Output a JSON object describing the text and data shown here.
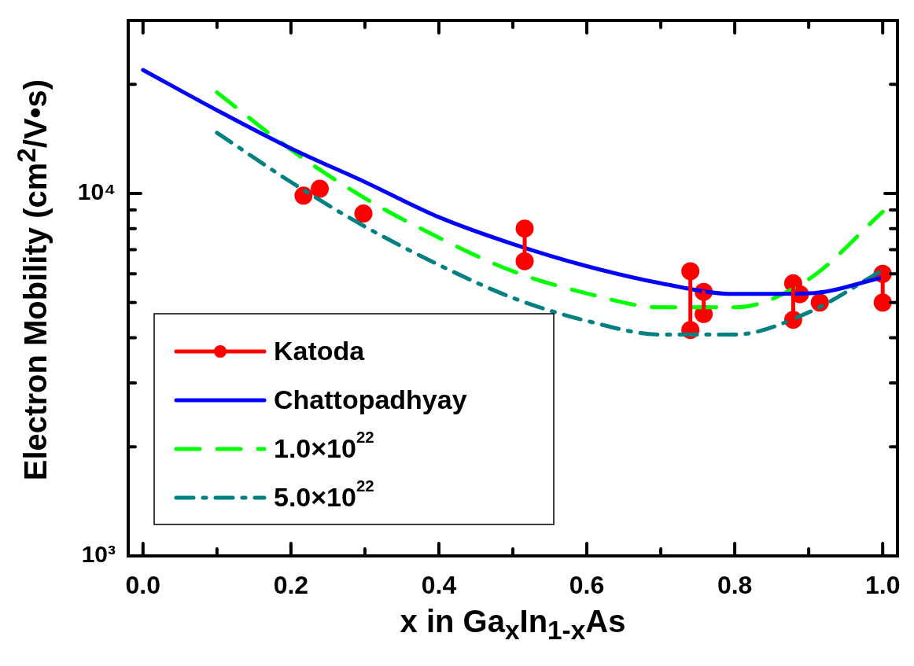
{
  "chart_data": {
    "type": "line",
    "xlabel": "x in Ga$_{x}$In$_{1-x}$As",
    "ylabel": "Electron Mobility (cm$^{2}$/V•s)",
    "log": "y",
    "xlim": [
      -0.02,
      1.02
    ],
    "ylim": [
      1000,
      30000
    ],
    "xticks": [
      {
        "value": 0,
        "label": "0.0"
      },
      {
        "value": 0.1,
        "label": null
      },
      {
        "value": 0.2,
        "label": "0.2"
      },
      {
        "value": 0.3,
        "label": null
      },
      {
        "value": 0.4,
        "label": "0.4"
      },
      {
        "value": 0.5,
        "label": null
      },
      {
        "value": 0.6,
        "label": "0.6"
      },
      {
        "value": 0.7,
        "label": null
      },
      {
        "value": 0.8,
        "label": "0.8"
      },
      {
        "value": 0.9,
        "label": null
      },
      {
        "value": 1,
        "label": "1.0"
      }
    ],
    "yticks": [
      {
        "value": 1000,
        "label": "10³"
      },
      {
        "value": 2000,
        "label": null
      },
      {
        "value": 3000,
        "label": null
      },
      {
        "value": 4000,
        "label": null
      },
      {
        "value": 5000,
        "label": null
      },
      {
        "value": 6000,
        "label": null
      },
      {
        "value": 7000,
        "label": null
      },
      {
        "value": 8000,
        "label": null
      },
      {
        "value": 9000,
        "label": null
      },
      {
        "value": 10000,
        "label": "10⁴"
      },
      {
        "value": 20000,
        "label": null
      }
    ],
    "grid": false,
    "legend": "bottom left",
    "series": [
      {
        "name": "Katoda",
        "type": "scatter",
        "color": "#ff0000",
        "marker": "circle",
        "line_style": "solid",
        "x": [
          0.217,
          0.239,
          0.298,
          0.516,
          0.516,
          0.74,
          0.74,
          0.758,
          0.758,
          0.879,
          0.879,
          0.888,
          0.915,
          1.0,
          1.0
        ],
        "values": [
          9860,
          10300,
          8800,
          8000,
          6500,
          6100,
          4200,
          5350,
          4650,
          5650,
          4480,
          5270,
          5000,
          6000,
          5000
        ]
      },
      {
        "type": "line",
        "color": "#ff0000",
        "marker": "none",
        "line_style": "solid",
        "x": [
          0.516,
          0.516
        ],
        "values": [
          8000,
          6500
        ]
      },
      {
        "type": "line",
        "color": "#ff0000",
        "marker": "none",
        "line_style": "solid",
        "x": [
          0.74,
          0.74
        ],
        "values": [
          6100,
          4200
        ]
      },
      {
        "type": "line",
        "color": "#ff0000",
        "marker": "none",
        "line_style": "solid",
        "x": [
          0.758,
          0.758
        ],
        "values": [
          5350,
          4650
        ]
      },
      {
        "type": "line",
        "color": "#ff0000",
        "marker": "none",
        "line_style": "solid",
        "x": [
          0.879,
          0.879
        ],
        "values": [
          5650,
          4480
        ]
      },
      {
        "type": "line",
        "color": "#ff0000",
        "marker": "none",
        "line_style": "solid",
        "x": [
          1.0,
          1.0
        ],
        "values": [
          6000,
          5000
        ]
      },
      {
        "name": "Chattopadhyay",
        "color": "#0000ff",
        "marker": "none",
        "line_style": "solid",
        "x": [
          0,
          0.1,
          0.2,
          0.3,
          0.4,
          0.5,
          0.6,
          0.7,
          0.8,
          0.9,
          1.0
        ],
        "values": [
          21900,
          16960,
          13310,
          10750,
          8600,
          7250,
          6300,
          5650,
          5280,
          5300,
          5860
        ]
      },
      {
        "name": "1.0×10$^{22}$",
        "color": "#00ff00",
        "marker": "none",
        "line_style": "dashed",
        "x": [
          0.1,
          0.2,
          0.3,
          0.4,
          0.5,
          0.6,
          0.7,
          0.8,
          0.9,
          1.0
        ],
        "values": [
          19000,
          13200,
          9700,
          7550,
          6100,
          5300,
          4850,
          4850,
          5800,
          8900
        ]
      },
      {
        "name": "5.0×10$^{22}$",
        "color": "#008080",
        "marker": "none",
        "line_style": "dashdot",
        "x": [
          0.1,
          0.2,
          0.3,
          0.4,
          0.5,
          0.6,
          0.7,
          0.8,
          0.9,
          1.0
        ],
        "values": [
          14700,
          10750,
          8100,
          6350,
          5150,
          4450,
          4080,
          4080,
          4700,
          6150
        ]
      }
    ]
  }
}
